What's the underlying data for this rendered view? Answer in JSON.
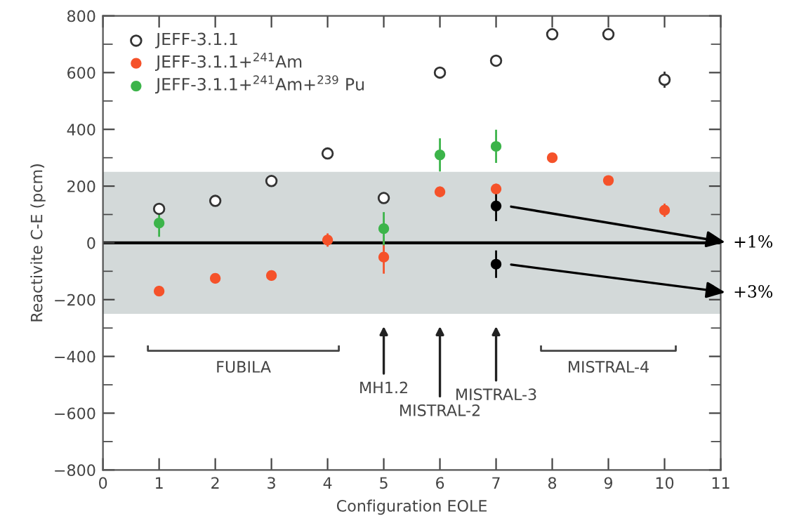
{
  "chart_data": {
    "type": "scatter",
    "xlabel": "Configuration EOLE",
    "ylabel": "Reactivite C-E (pcm)",
    "xlim": [
      0,
      11
    ],
    "ylim": [
      -800,
      800
    ],
    "xticks": [
      0,
      1,
      2,
      3,
      4,
      5,
      6,
      7,
      8,
      9,
      10,
      11
    ],
    "yticks": [
      -800,
      -600,
      -400,
      -200,
      0,
      200,
      400,
      600,
      800
    ],
    "grid": false,
    "legend": "top left",
    "marker": "circle",
    "series": [
      {
        "name": "JEFF-3.1.1",
        "color": "#333333",
        "x": [
          1,
          2,
          3,
          4,
          5,
          6,
          7,
          8,
          9,
          10
        ],
        "values": [
          120,
          148,
          218,
          315,
          158,
          600,
          642,
          735,
          735,
          575
        ],
        "errors": [
          null,
          null,
          null,
          null,
          15,
          null,
          null,
          null,
          null,
          25
        ]
      },
      {
        "name": "JEFF-3.1.1+$^{241}$Am",
        "color": "#f5522a",
        "x": [
          1,
          2,
          3,
          4,
          5,
          6,
          7,
          8,
          9,
          10
        ],
        "values": [
          -170,
          -125,
          -115,
          10,
          -50,
          180,
          190,
          300,
          220,
          115
        ],
        "errors": [
          15,
          15,
          15,
          20,
          55,
          15,
          15,
          10,
          10,
          20
        ]
      },
      {
        "name": "JEFF-3.1.1+$^{241}$Am+$^{239}$ Pu",
        "color": "#3cb44a",
        "x": [
          1,
          5,
          6,
          7
        ],
        "values": [
          70,
          50,
          310,
          340
        ],
        "errors": [
          45,
          55,
          55,
          55
        ]
      },
      {
        "color": "#000000",
        "x": [
          7,
          7
        ],
        "values": [
          130,
          -75
        ],
        "errors": [
          50,
          45
        ]
      }
    ],
    "ref_lines": [
      {
        "axis": "y",
        "value": 0,
        "color": "#000000"
      }
    ],
    "bands": [
      {
        "axis": "y",
        "from": -250,
        "to": 250,
        "color": "#d3d9d9"
      }
    ],
    "annotations": [
      "+1%",
      "+3%",
      "MH1.2",
      "MISTRAL-2",
      "MISTRAL-3",
      "FUBILA",
      "MISTRAL-4"
    ]
  }
}
